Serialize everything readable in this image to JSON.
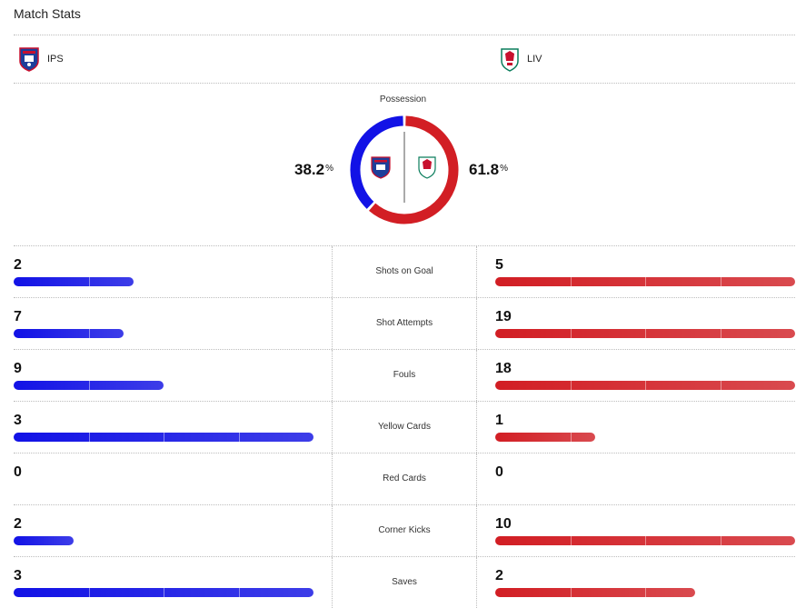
{
  "title": "Match Stats",
  "home": {
    "abbr": "IPS",
    "color": "#1212e6",
    "possession": 38.2,
    "possession_label": "38.2"
  },
  "away": {
    "abbr": "LIV",
    "color": "#d21e24",
    "possession": 61.8,
    "possession_label": "61.8"
  },
  "possession": {
    "label": "Possession",
    "unit": "%"
  },
  "stats": [
    {
      "label": "Shots on Goal",
      "home": "2",
      "away": "5",
      "home_fill": 0.4,
      "away_fill": 1.0
    },
    {
      "label": "Shot Attempts",
      "home": "7",
      "away": "19",
      "home_fill": 0.368,
      "away_fill": 1.0
    },
    {
      "label": "Fouls",
      "home": "9",
      "away": "18",
      "home_fill": 0.5,
      "away_fill": 1.0
    },
    {
      "label": "Yellow Cards",
      "home": "3",
      "away": "1",
      "home_fill": 1.0,
      "away_fill": 0.333
    },
    {
      "label": "Red Cards",
      "home": "0",
      "away": "0",
      "home_fill": 0,
      "away_fill": 0
    },
    {
      "label": "Corner Kicks",
      "home": "2",
      "away": "10",
      "home_fill": 0.2,
      "away_fill": 1.0
    },
    {
      "label": "Saves",
      "home": "3",
      "away": "2",
      "home_fill": 1.0,
      "away_fill": 0.667
    }
  ]
}
